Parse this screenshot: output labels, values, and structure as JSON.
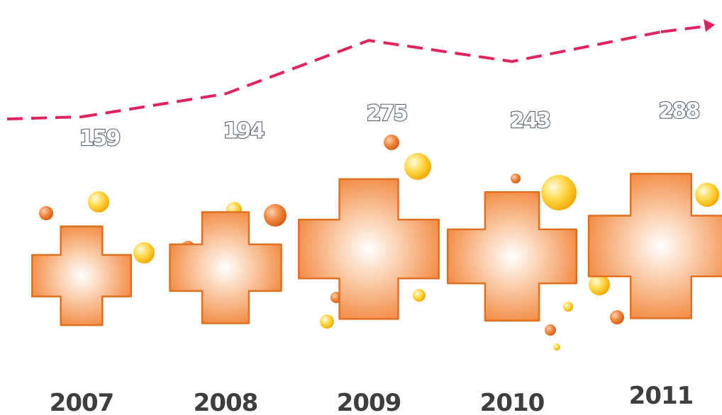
{
  "chart_data": {
    "type": "pictograph",
    "categories": [
      "2007",
      "2008",
      "2009",
      "2010",
      "2011"
    ],
    "values": [
      159,
      194,
      275,
      243,
      288
    ],
    "color": "#f07d2e",
    "line_color": "#e0245e"
  }
}
